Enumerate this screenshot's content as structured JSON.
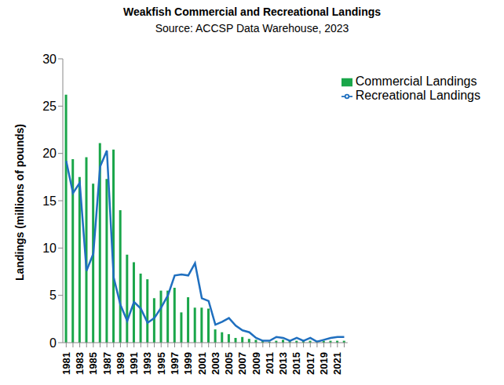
{
  "chart_data": {
    "type": "bar",
    "title": "Weakfish Commercial and Recreational Landings",
    "subtitle": "Source: ACCSP Data Warehouse, 2023",
    "y_label": "Landings (millions of pounds)",
    "categories": [
      "1981",
      null,
      "1983",
      null,
      "1985",
      null,
      "1987",
      null,
      "1989",
      null,
      "1991",
      null,
      "1993",
      null,
      "1995",
      null,
      "1997",
      null,
      "1999",
      null,
      "2001",
      null,
      "2003",
      null,
      "2005",
      null,
      "2007",
      null,
      "2009",
      null,
      "2011",
      null,
      "2013",
      null,
      "2015",
      null,
      "2017",
      null,
      "2019",
      null,
      "2021",
      null
    ],
    "series": [
      {
        "name": "Commercial Landings",
        "type": "bar",
        "color": "#1aa64a",
        "values": [
          26.2,
          19.4,
          17.5,
          19.6,
          16.8,
          21.1,
          17.3,
          20.4,
          14.0,
          9.3,
          8.5,
          7.3,
          6.7,
          4.7,
          5.5,
          5.5,
          5.8,
          3.2,
          4.8,
          3.7,
          3.7,
          3.6,
          1.4,
          1.1,
          0.9,
          0.5,
          0.6,
          0.4,
          0.3,
          0.2,
          0.1,
          0.2,
          0.3,
          0.2,
          0.2,
          0.2,
          0.2,
          0.2,
          0.2,
          0.2,
          0.2,
          0.2
        ]
      },
      {
        "name": "Recreational Landings",
        "type": "line",
        "color": "#1f6fbf",
        "values": [
          19.2,
          15.8,
          16.9,
          7.6,
          9.4,
          18.6,
          20.3,
          6.9,
          4.0,
          2.3,
          4.3,
          3.6,
          2.1,
          2.6,
          3.7,
          5.0,
          7.1,
          7.2,
          7.1,
          8.4,
          4.7,
          4.4,
          1.9,
          2.2,
          2.6,
          1.8,
          1.3,
          1.1,
          0.5,
          0.2,
          0.2,
          0.6,
          0.5,
          0.2,
          0.5,
          0.2,
          0.5,
          0.1,
          0.3,
          0.5,
          0.6,
          0.6
        ]
      }
    ],
    "ylim": [
      0,
      30
    ],
    "yticks": [
      0,
      5,
      10,
      15,
      20,
      25,
      30
    ],
    "grid": false,
    "legend": "upper right"
  }
}
